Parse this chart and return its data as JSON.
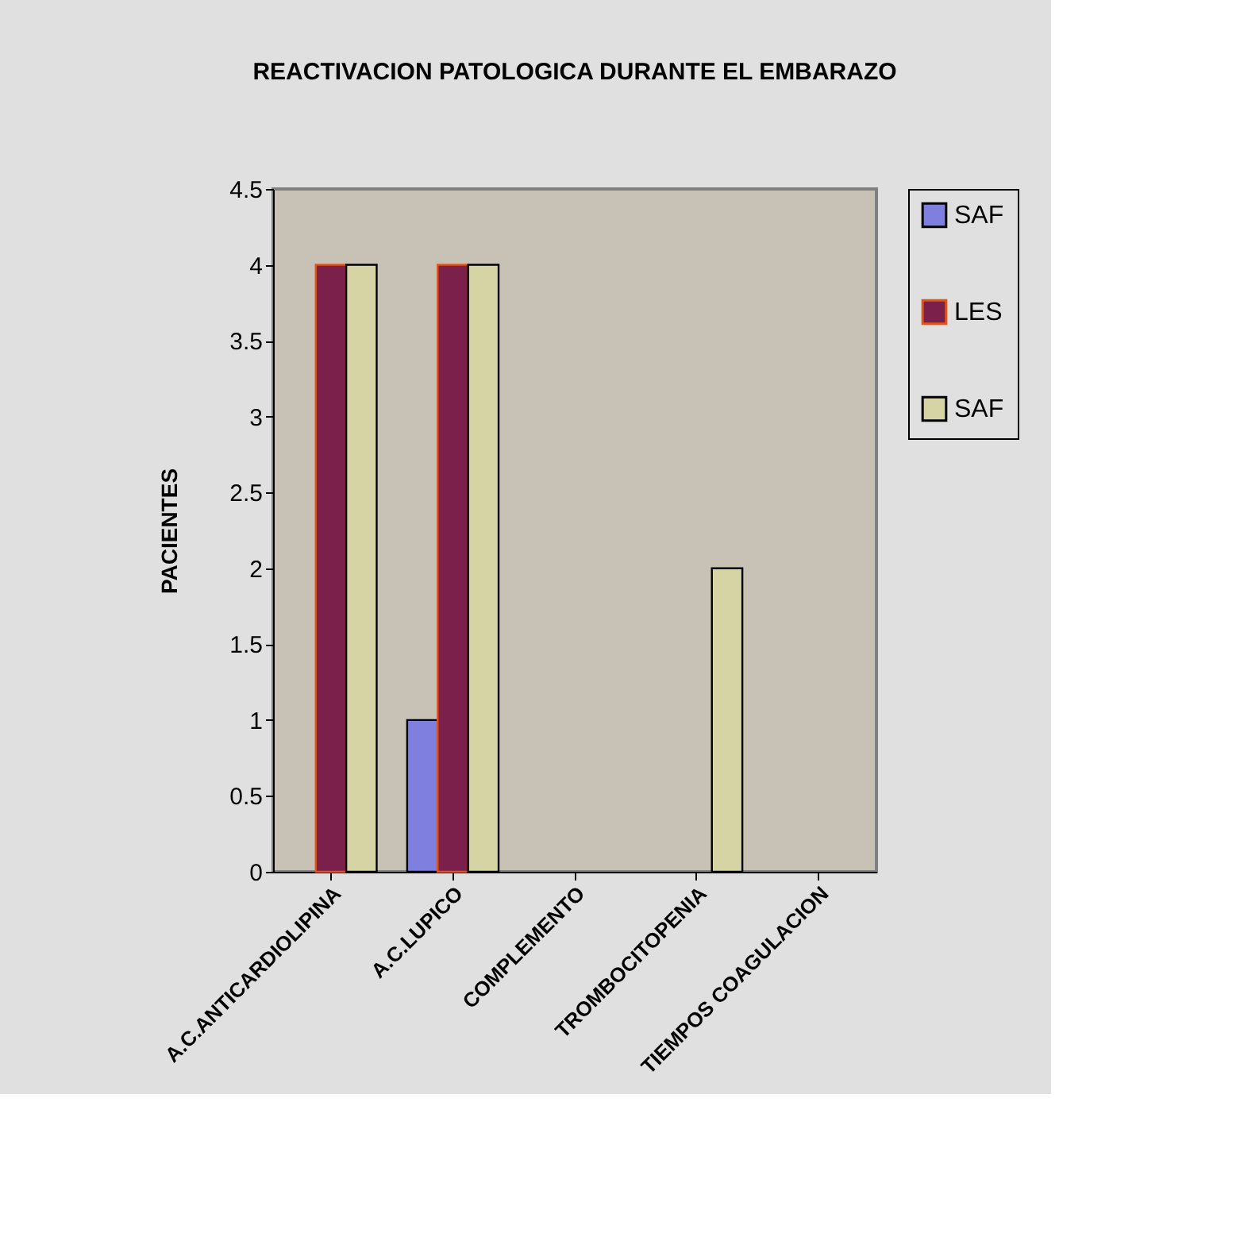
{
  "chart_data": {
    "type": "bar",
    "title": "REACTIVACION PATOLOGICA DURANTE EL EMBARAZO",
    "ylabel": "PACIENTES",
    "categories": [
      "A.C.ANTICARDIOLIPINA",
      "A.C.LUPICO",
      "COMPLEMENTO",
      "TROMBOCITOPENIA",
      "TIEMPOS COAGULACION"
    ],
    "series": [
      {
        "name": "SAF",
        "color": "#7f7fdf",
        "values": [
          0,
          1,
          0,
          0,
          0
        ]
      },
      {
        "name": "LES",
        "color": "#7b1f4b",
        "values": [
          4,
          4,
          0,
          0,
          0
        ]
      },
      {
        "name": "SAF",
        "color": "#d6d4a4",
        "values": [
          4,
          4,
          0,
          2,
          0
        ]
      }
    ],
    "ylim": [
      0,
      4.5
    ],
    "yticks": [
      0,
      0.5,
      1,
      1.5,
      2,
      2.5,
      3,
      3.5,
      4,
      4.5
    ],
    "legend": "right"
  }
}
